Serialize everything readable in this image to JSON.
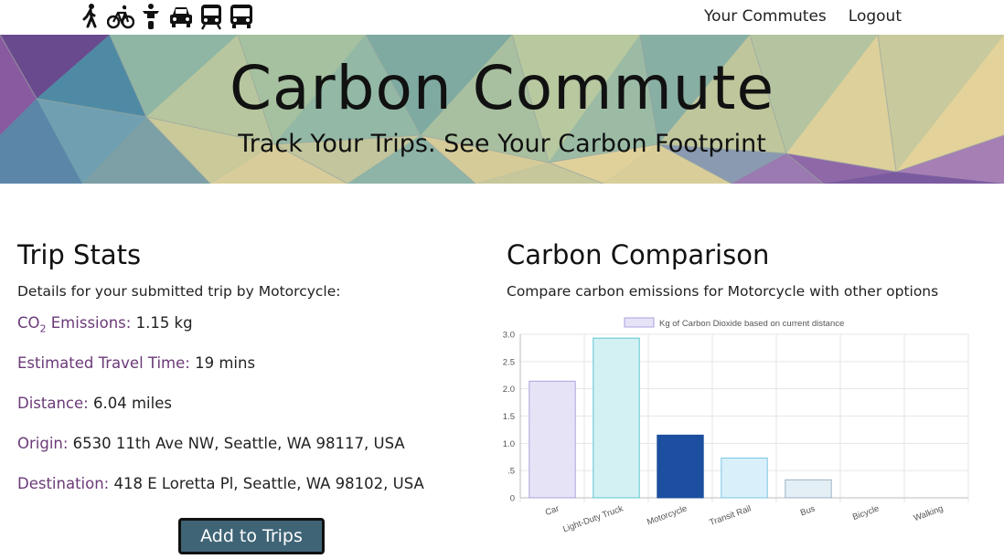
{
  "nav": {
    "mode_icons": [
      "walking-icon",
      "bicycle-icon",
      "motorcycle-icon",
      "car-icon",
      "train-icon",
      "bus-icon"
    ],
    "links": [
      "Your Commutes",
      "Logout"
    ]
  },
  "hero": {
    "title": "Carbon Commute",
    "subtitle": "Track Your Trips. See Your Carbon Footprint"
  },
  "trip_stats": {
    "heading": "Trip Stats",
    "lead": "Details for your submitted trip by Motorcycle:",
    "co2_label_main": "CO",
    "co2_label_sub": "2",
    "co2_label_tail": " Emissions:",
    "co2_value": " 1.15 kg",
    "time_label": "Estimated Travel Time:",
    "time_value": " 19 mins",
    "distance_label": "Distance:",
    "distance_value": " 6.04 miles",
    "origin_label": "Origin:",
    "origin_value": " 6530 11th Ave NW, Seattle, WA 98117, USA",
    "destination_label": "Destination:",
    "destination_value": " 418 E Loretta Pl, Seattle, WA 98102, USA",
    "add_button": "Add to Trips"
  },
  "comparison": {
    "heading": "Carbon Comparison",
    "lead": "Compare carbon emissions for Motorcycle with other options"
  },
  "chart_data": {
    "type": "bar",
    "categories": [
      "Car",
      "Light-Duty Truck",
      "Motorcycle",
      "Transit Rail",
      "Bus",
      "Bicycle",
      "Walking"
    ],
    "series": [
      {
        "name": "Kg of Carbon Dioxide based on current distance",
        "values": [
          2.14,
          2.93,
          1.15,
          0.73,
          0.33,
          0,
          0
        ]
      }
    ],
    "ylim": [
      0,
      3.0
    ],
    "yticks": [
      "0",
      ".5",
      "1.0",
      "1.5",
      "2.0",
      "2.5",
      "3.0"
    ],
    "ytick_values": [
      0,
      0.5,
      1.0,
      1.5,
      2.0,
      2.5,
      3.0
    ],
    "grid": true,
    "legend": "top-center",
    "fill_colors": [
      "#e6e3f7",
      "#d3f1f3",
      "#1d4fa0",
      "#d9f0fb",
      "#e3eef5",
      "#eeeeee",
      "#eeeeee"
    ],
    "stroke_colors": [
      "#aaa3df",
      "#5cc6cf",
      "#1d4fa0",
      "#7cc5e6",
      "#9cb3c6",
      "#cccccc",
      "#cccccc"
    ],
    "legend_swatch_fill": "#e6e3f7",
    "legend_swatch_stroke": "#aaa3df"
  }
}
